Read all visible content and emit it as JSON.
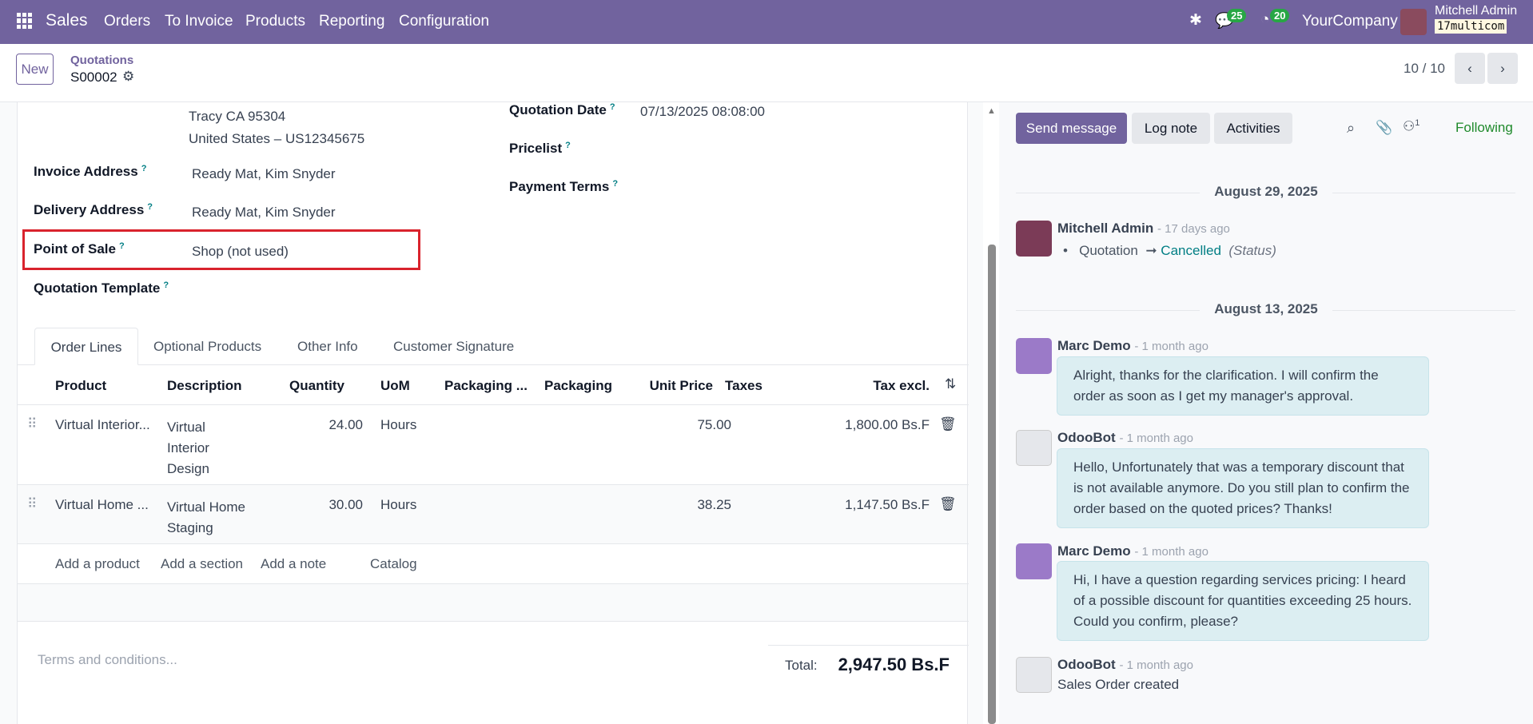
{
  "navbar": {
    "app": "Sales",
    "menu": [
      "Orders",
      "To Invoice",
      "Products",
      "Reporting",
      "Configuration"
    ],
    "messages_count": "25",
    "activities_count": "20",
    "company": "YourCompany",
    "user": "Mitchell Admin",
    "database": "17multicom"
  },
  "control_panel": {
    "new_label": "New",
    "breadcrumb": "Quotations",
    "record": "S00002",
    "pager": "10 / 10"
  },
  "form": {
    "address_lines": [
      "Tracy CA 95304",
      "United States – US12345675"
    ],
    "fields_left": [
      {
        "label": "Invoice Address",
        "value": "Ready Mat, Kim Snyder"
      },
      {
        "label": "Delivery Address",
        "value": "Ready Mat, Kim Snyder"
      },
      {
        "label": "Point of Sale",
        "value": "Shop (not used)"
      },
      {
        "label": "Quotation Template",
        "value": ""
      }
    ],
    "fields_right": [
      {
        "label": "Quotation Date",
        "value": "07/13/2025 08:08:00"
      },
      {
        "label": "Pricelist",
        "value": ""
      },
      {
        "label": "Payment Terms",
        "value": ""
      }
    ],
    "help_mark": "?",
    "tabs": [
      "Order Lines",
      "Optional Products",
      "Other Info",
      "Customer Signature"
    ],
    "columns": [
      "Product",
      "Description",
      "Quantity",
      "UoM",
      "Packaging ...",
      "Packaging",
      "Unit Price",
      "Taxes",
      "Tax excl."
    ],
    "rows": [
      {
        "product": "Virtual Interior...",
        "description": [
          "Virtual",
          "Interior",
          "Design"
        ],
        "quantity": "24.00",
        "uom": "Hours",
        "unit_price": "75.00",
        "subtotal": "1,800.00 Bs.F"
      },
      {
        "product": "Virtual Home ...",
        "description": [
          "Virtual Home",
          "Staging"
        ],
        "quantity": "30.00",
        "uom": "Hours",
        "unit_price": "38.25",
        "subtotal": "1,147.50 Bs.F"
      }
    ],
    "add_links": [
      "Add a product",
      "Add a section",
      "Add a note",
      "Catalog"
    ],
    "terms_placeholder": "Terms and conditions...",
    "total_label": "Total:",
    "total_value": "2,947.50 Bs.F"
  },
  "chatter": {
    "send_message": "Send message",
    "log_note": "Log note",
    "activities": "Activities",
    "followers_count": "1",
    "following": "Following",
    "groups": [
      {
        "date": "August 29, 2025",
        "messages": [
          {
            "author": "Mitchell Admin",
            "time": "- 17 days ago",
            "tracking": {
              "old": "Quotation",
              "new": "Cancelled",
              "field": "(Status)"
            }
          }
        ]
      },
      {
        "date": "August 13, 2025",
        "messages": [
          {
            "author": "Marc Demo",
            "time": "- 1 month ago",
            "body": "Alright, thanks for the clarification. I will confirm the order as soon as I get my manager's approval."
          },
          {
            "author": "OdooBot",
            "time": "- 1 month ago",
            "body": "Hello, Unfortunately that was a temporary discount that is not available anymore. Do you still plan to confirm the order based on the quoted prices? Thanks!"
          },
          {
            "author": "Marc Demo",
            "time": "- 1 month ago",
            "body": "Hi, I have a question regarding services pricing: I heard of a possible discount for quantities exceeding 25 hours. Could you confirm, please?"
          },
          {
            "author": "OdooBot",
            "time": "- 1 month ago",
            "body": "Sales Order created"
          }
        ]
      }
    ]
  },
  "colors": {
    "brand": "#71639e",
    "highlight_box": "#d9232d",
    "following": "#1f8a2b",
    "link": "#017e84"
  }
}
